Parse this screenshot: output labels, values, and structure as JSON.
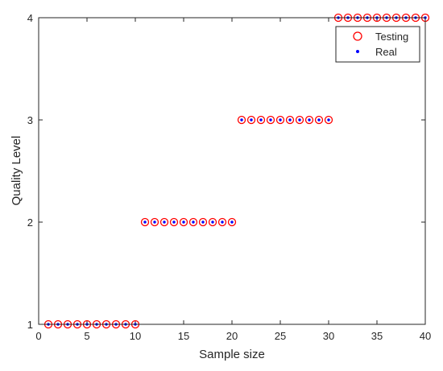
{
  "chart_data": {
    "type": "scatter",
    "xlabel": "Sample size",
    "ylabel": "Quality Level",
    "xlim": [
      0,
      40
    ],
    "ylim": [
      1,
      4
    ],
    "xticks": [
      0,
      5,
      10,
      15,
      20,
      25,
      30,
      35,
      40
    ],
    "yticks": [
      1,
      2,
      3,
      4
    ],
    "grid": false,
    "legend_position": "top-right",
    "x": [
      1,
      2,
      3,
      4,
      5,
      6,
      7,
      8,
      9,
      10,
      11,
      12,
      13,
      14,
      15,
      16,
      17,
      18,
      19,
      20,
      21,
      22,
      23,
      24,
      25,
      26,
      27,
      28,
      29,
      30,
      31,
      32,
      33,
      34,
      35,
      36,
      37,
      38,
      39,
      40
    ],
    "series": [
      {
        "name": "Testing",
        "marker": "open-circle",
        "color": "#ff0000",
        "values": [
          1,
          1,
          1,
          1,
          1,
          1,
          1,
          1,
          1,
          1,
          2,
          2,
          2,
          2,
          2,
          2,
          2,
          2,
          2,
          2,
          3,
          3,
          3,
          3,
          3,
          3,
          3,
          3,
          3,
          3,
          4,
          4,
          4,
          4,
          4,
          4,
          4,
          4,
          4,
          4
        ]
      },
      {
        "name": "Real",
        "marker": "dot",
        "color": "#0000ff",
        "values": [
          1,
          1,
          1,
          1,
          1,
          1,
          1,
          1,
          1,
          1,
          2,
          2,
          2,
          2,
          2,
          2,
          2,
          2,
          2,
          2,
          3,
          3,
          3,
          3,
          3,
          3,
          3,
          3,
          3,
          3,
          4,
          4,
          4,
          4,
          4,
          4,
          4,
          4,
          4,
          4
        ]
      }
    ]
  }
}
